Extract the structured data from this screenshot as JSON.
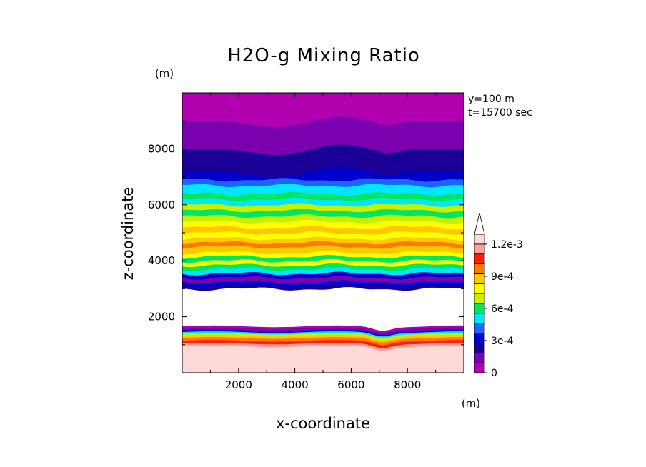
{
  "chart_data": {
    "type": "heatmap",
    "title": "H2O-g Mixing Ratio",
    "xlabel": "x-coordinate",
    "ylabel": "z-coordinate",
    "x_unit": "(m)",
    "y_unit": "(m)",
    "annotations": [
      "y=100 m",
      "t=15700 sec"
    ],
    "xlim": [
      0,
      10000
    ],
    "ylim": [
      0,
      10000
    ],
    "x_ticks": [
      {
        "value": 2000,
        "label": "2000"
      },
      {
        "value": 4000,
        "label": "4000"
      },
      {
        "value": 6000,
        "label": "6000"
      },
      {
        "value": 8000,
        "label": "8000"
      }
    ],
    "y_ticks": [
      {
        "value": 2000,
        "label": "2000"
      },
      {
        "value": 4000,
        "label": "4000"
      },
      {
        "value": 6000,
        "label": "6000"
      },
      {
        "value": 8000,
        "label": "8000"
      }
    ],
    "grid": false,
    "colorbar": {
      "position": "right",
      "levels": [
        0,
        0.0001,
        0.0002,
        0.0003,
        0.0004,
        0.0005,
        0.0006,
        0.0007,
        0.0008,
        0.0009,
        0.001,
        0.0011,
        0.0012
      ],
      "colors": [
        "#b000b0",
        "#7a00b0",
        "#1a0096",
        "#0000cc",
        "#1a64ff",
        "#00e6ff",
        "#00e664",
        "#c8f000",
        "#ffff00",
        "#ffc800",
        "#ff7800",
        "#ff1e00",
        "#ffa0a0",
        "#ffd8d8"
      ],
      "labels": [
        {
          "value": 0,
          "label": "0"
        },
        {
          "value": 0.0003,
          "label": "3e-4"
        },
        {
          "value": 0.0006,
          "label": "6e-4"
        },
        {
          "value": 0.0009,
          "label": "9e-4"
        },
        {
          "value": 0.0012,
          "label": "1.2e-3"
        }
      ],
      "extend": "max"
    },
    "bands": [
      {
        "z": [
          0,
          950
        ],
        "level": 13
      },
      {
        "z": [
          950,
          1050
        ],
        "level": 12
      },
      {
        "z": [
          1050,
          1150
        ],
        "level": 11
      },
      {
        "z": [
          1150,
          1250
        ],
        "level": 10
      },
      {
        "z": [
          1250,
          1330
        ],
        "level": 9
      },
      {
        "z": [
          1330,
          1400
        ],
        "level": 7
      },
      {
        "z": [
          1400,
          1460
        ],
        "level": 5
      },
      {
        "z": [
          1460,
          1520
        ],
        "level": 3
      },
      {
        "z": [
          1520,
          1600
        ],
        "level": 1
      },
      {
        "z": [
          1600,
          1650
        ],
        "level": 0
      },
      {
        "z": [
          1650,
          3000
        ],
        "level": null
      },
      {
        "z": [
          3000,
          3100
        ],
        "level": 2
      },
      {
        "z": [
          3100,
          3250
        ],
        "level": 3
      },
      {
        "z": [
          3250,
          3400
        ],
        "level": 1
      },
      {
        "z": [
          3400,
          3550
        ],
        "level": 3
      },
      {
        "z": [
          3550,
          3700
        ],
        "level": 5
      },
      {
        "z": [
          3700,
          3850
        ],
        "level": 6
      },
      {
        "z": [
          3850,
          4000
        ],
        "level": 8
      },
      {
        "z": [
          4000,
          4150
        ],
        "level": 6
      },
      {
        "z": [
          4150,
          4300
        ],
        "level": 8
      },
      {
        "z": [
          4300,
          4500
        ],
        "level": 9
      },
      {
        "z": [
          4500,
          4650
        ],
        "level": 10
      },
      {
        "z": [
          4650,
          4800
        ],
        "level": 9
      },
      {
        "z": [
          4800,
          5000
        ],
        "level": 8
      },
      {
        "z": [
          5000,
          5200
        ],
        "level": 9
      },
      {
        "z": [
          5200,
          5400
        ],
        "level": 8
      },
      {
        "z": [
          5400,
          5600
        ],
        "level": 7
      },
      {
        "z": [
          5600,
          5800
        ],
        "level": 6
      },
      {
        "z": [
          5800,
          6000
        ],
        "level": 7
      },
      {
        "z": [
          6000,
          6200
        ],
        "level": 5
      },
      {
        "z": [
          6200,
          6400
        ],
        "level": 6
      },
      {
        "z": [
          6400,
          6700
        ],
        "level": 5
      },
      {
        "z": [
          6700,
          6900
        ],
        "level": 4
      },
      {
        "z": [
          6900,
          7200
        ],
        "level": 3
      },
      {
        "z": [
          7200,
          7500
        ],
        "level": 2
      },
      {
        "z": [
          7500,
          8000
        ],
        "level": 2
      },
      {
        "z": [
          8000,
          8500
        ],
        "level": 1
      },
      {
        "z": [
          8500,
          9000
        ],
        "level": 1
      },
      {
        "z": [
          9000,
          10000
        ],
        "level": 0
      }
    ]
  }
}
